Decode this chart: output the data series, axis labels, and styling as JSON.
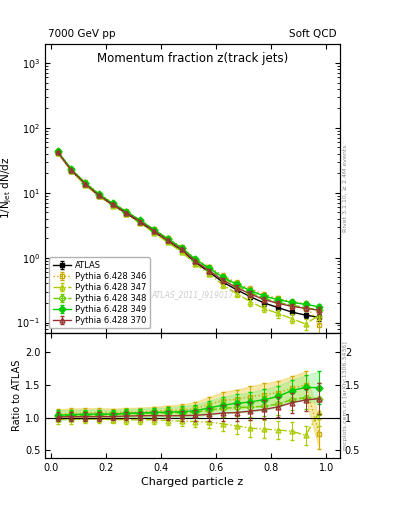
{
  "title": "Momentum fraction z(track jets)",
  "top_left_label": "7000 GeV pp",
  "top_right_label": "Soft QCD",
  "ylabel_main": "1/N$_\\mathrm{jet}$ dN/dz",
  "ylabel_ratio": "Ratio to ATLAS",
  "xlabel": "Charged particle z",
  "right_label_main": "Rivet 3.1.10, ≥ 2.4M events",
  "right_label_ratio": "mcplots.cern.ch [arXiv:1306.3436]",
  "watermark": "ATLAS_2011_I919017",
  "ylim_main": [
    0.07,
    2000
  ],
  "ylim_ratio": [
    0.38,
    2.3
  ],
  "xlim": [
    -0.02,
    1.05
  ],
  "series": [
    {
      "label": "ATLAS",
      "color": "#000000",
      "marker": "s",
      "markersize": 3.5,
      "linestyle": "-",
      "linewidth": 1.0,
      "filled": true,
      "is_ref": true,
      "x": [
        0.025,
        0.075,
        0.125,
        0.175,
        0.225,
        0.275,
        0.325,
        0.375,
        0.425,
        0.475,
        0.525,
        0.575,
        0.625,
        0.675,
        0.725,
        0.775,
        0.825,
        0.875,
        0.925,
        0.975
      ],
      "y": [
        42.0,
        22.0,
        13.5,
        9.0,
        6.5,
        4.8,
        3.5,
        2.5,
        1.8,
        1.3,
        0.85,
        0.6,
        0.42,
        0.32,
        0.25,
        0.2,
        0.17,
        0.145,
        0.13,
        0.12
      ],
      "yerr_lo": [
        2.0,
        1.0,
        0.6,
        0.4,
        0.25,
        0.2,
        0.15,
        0.1,
        0.08,
        0.07,
        0.05,
        0.04,
        0.03,
        0.025,
        0.02,
        0.018,
        0.015,
        0.012,
        0.012,
        0.015
      ],
      "yerr_hi": [
        2.0,
        1.0,
        0.6,
        0.4,
        0.25,
        0.2,
        0.15,
        0.1,
        0.08,
        0.07,
        0.05,
        0.04,
        0.03,
        0.025,
        0.02,
        0.018,
        0.015,
        0.012,
        0.012,
        0.015
      ]
    },
    {
      "label": "Pythia 6.428 346",
      "color": "#ccaa00",
      "marker": "s",
      "markersize": 3.5,
      "linestyle": ":",
      "linewidth": 1.0,
      "filled": false,
      "has_band": true,
      "band_color": "#eecc44",
      "band_alpha": 0.45,
      "x": [
        0.025,
        0.075,
        0.125,
        0.175,
        0.225,
        0.275,
        0.325,
        0.375,
        0.425,
        0.475,
        0.525,
        0.575,
        0.625,
        0.675,
        0.725,
        0.775,
        0.825,
        0.875,
        0.925,
        0.975
      ],
      "y": [
        44.0,
        23.5,
        14.5,
        9.7,
        7.0,
        5.2,
        3.8,
        2.75,
        2.0,
        1.45,
        0.97,
        0.72,
        0.53,
        0.41,
        0.33,
        0.27,
        0.235,
        0.21,
        0.195,
        0.09
      ],
      "yerr_lo": [
        2.5,
        1.2,
        0.7,
        0.45,
        0.3,
        0.22,
        0.17,
        0.13,
        0.1,
        0.08,
        0.06,
        0.05,
        0.04,
        0.035,
        0.03,
        0.025,
        0.022,
        0.02,
        0.02,
        0.025
      ],
      "yerr_hi": [
        2.5,
        1.2,
        0.7,
        0.45,
        0.3,
        0.22,
        0.17,
        0.13,
        0.1,
        0.08,
        0.06,
        0.05,
        0.04,
        0.035,
        0.03,
        0.025,
        0.022,
        0.02,
        0.02,
        0.025
      ]
    },
    {
      "label": "Pythia 6.428 347",
      "color": "#aacc00",
      "marker": "^",
      "markersize": 3.5,
      "linestyle": "-.",
      "linewidth": 1.0,
      "filled": false,
      "has_band": false,
      "x": [
        0.025,
        0.075,
        0.125,
        0.175,
        0.225,
        0.275,
        0.325,
        0.375,
        0.425,
        0.475,
        0.525,
        0.575,
        0.625,
        0.675,
        0.725,
        0.775,
        0.825,
        0.875,
        0.925,
        0.975
      ],
      "y": [
        41.0,
        21.5,
        13.2,
        8.8,
        6.3,
        4.65,
        3.38,
        2.42,
        1.72,
        1.23,
        0.8,
        0.56,
        0.38,
        0.28,
        0.21,
        0.165,
        0.138,
        0.115,
        0.095,
        0.13
      ],
      "yerr_lo": [
        2.2,
        1.1,
        0.65,
        0.42,
        0.28,
        0.21,
        0.16,
        0.12,
        0.09,
        0.07,
        0.055,
        0.045,
        0.038,
        0.032,
        0.028,
        0.022,
        0.019,
        0.018,
        0.017,
        0.02
      ],
      "yerr_hi": [
        2.2,
        1.1,
        0.65,
        0.42,
        0.28,
        0.21,
        0.16,
        0.12,
        0.09,
        0.07,
        0.055,
        0.045,
        0.038,
        0.032,
        0.028,
        0.022,
        0.019,
        0.018,
        0.017,
        0.02
      ]
    },
    {
      "label": "Pythia 6.428 348",
      "color": "#66cc00",
      "marker": "D",
      "markersize": 3.5,
      "linestyle": "--",
      "linewidth": 1.0,
      "filled": false,
      "has_band": false,
      "x": [
        0.025,
        0.075,
        0.125,
        0.175,
        0.225,
        0.275,
        0.325,
        0.375,
        0.425,
        0.475,
        0.525,
        0.575,
        0.625,
        0.675,
        0.725,
        0.775,
        0.825,
        0.875,
        0.925,
        0.975
      ],
      "y": [
        43.0,
        22.8,
        14.0,
        9.4,
        6.8,
        5.1,
        3.72,
        2.68,
        1.93,
        1.4,
        0.92,
        0.67,
        0.48,
        0.37,
        0.29,
        0.235,
        0.205,
        0.185,
        0.17,
        0.155
      ],
      "yerr_lo": [
        2.3,
        1.15,
        0.68,
        0.43,
        0.29,
        0.22,
        0.165,
        0.12,
        0.095,
        0.075,
        0.058,
        0.047,
        0.04,
        0.033,
        0.028,
        0.023,
        0.02,
        0.018,
        0.017,
        0.022
      ],
      "yerr_hi": [
        2.3,
        1.15,
        0.68,
        0.43,
        0.29,
        0.22,
        0.165,
        0.12,
        0.095,
        0.075,
        0.058,
        0.047,
        0.04,
        0.033,
        0.028,
        0.023,
        0.02,
        0.018,
        0.017,
        0.022
      ]
    },
    {
      "label": "Pythia 6.428 349",
      "color": "#00cc00",
      "marker": "D",
      "markersize": 3.5,
      "linestyle": "-",
      "linewidth": 1.0,
      "filled": true,
      "has_band": true,
      "band_color": "#88ee88",
      "band_alpha": 0.4,
      "x": [
        0.025,
        0.075,
        0.125,
        0.175,
        0.225,
        0.275,
        0.325,
        0.375,
        0.425,
        0.475,
        0.525,
        0.575,
        0.625,
        0.675,
        0.725,
        0.775,
        0.825,
        0.875,
        0.925,
        0.975
      ],
      "y": [
        43.5,
        23.0,
        14.2,
        9.5,
        6.85,
        5.12,
        3.75,
        2.7,
        1.95,
        1.42,
        0.94,
        0.69,
        0.5,
        0.39,
        0.31,
        0.255,
        0.225,
        0.205,
        0.19,
        0.175
      ],
      "yerr_lo": [
        2.4,
        1.18,
        0.69,
        0.44,
        0.295,
        0.215,
        0.163,
        0.125,
        0.097,
        0.077,
        0.057,
        0.046,
        0.039,
        0.032,
        0.027,
        0.022,
        0.019,
        0.017,
        0.016,
        0.021
      ],
      "yerr_hi": [
        2.4,
        1.18,
        0.69,
        0.44,
        0.295,
        0.215,
        0.163,
        0.125,
        0.097,
        0.077,
        0.057,
        0.046,
        0.039,
        0.032,
        0.027,
        0.022,
        0.019,
        0.017,
        0.016,
        0.021
      ]
    },
    {
      "label": "Pythia 6.428 370",
      "color": "#993333",
      "marker": "^",
      "markersize": 3.5,
      "linestyle": "-",
      "linewidth": 1.0,
      "filled": false,
      "has_band": false,
      "x": [
        0.025,
        0.075,
        0.125,
        0.175,
        0.225,
        0.275,
        0.325,
        0.375,
        0.425,
        0.475,
        0.525,
        0.575,
        0.625,
        0.675,
        0.725,
        0.775,
        0.825,
        0.875,
        0.925,
        0.975
      ],
      "y": [
        42.5,
        22.3,
        13.7,
        9.15,
        6.6,
        4.92,
        3.6,
        2.58,
        1.85,
        1.34,
        0.88,
        0.63,
        0.45,
        0.345,
        0.275,
        0.225,
        0.198,
        0.178,
        0.165,
        0.155
      ],
      "yerr_lo": [
        2.1,
        1.05,
        0.62,
        0.41,
        0.27,
        0.205,
        0.158,
        0.118,
        0.092,
        0.072,
        0.053,
        0.043,
        0.037,
        0.031,
        0.026,
        0.021,
        0.018,
        0.016,
        0.015,
        0.02
      ],
      "yerr_hi": [
        2.1,
        1.05,
        0.62,
        0.41,
        0.27,
        0.205,
        0.158,
        0.118,
        0.092,
        0.072,
        0.053,
        0.043,
        0.037,
        0.031,
        0.026,
        0.021,
        0.018,
        0.016,
        0.015,
        0.02
      ]
    }
  ]
}
